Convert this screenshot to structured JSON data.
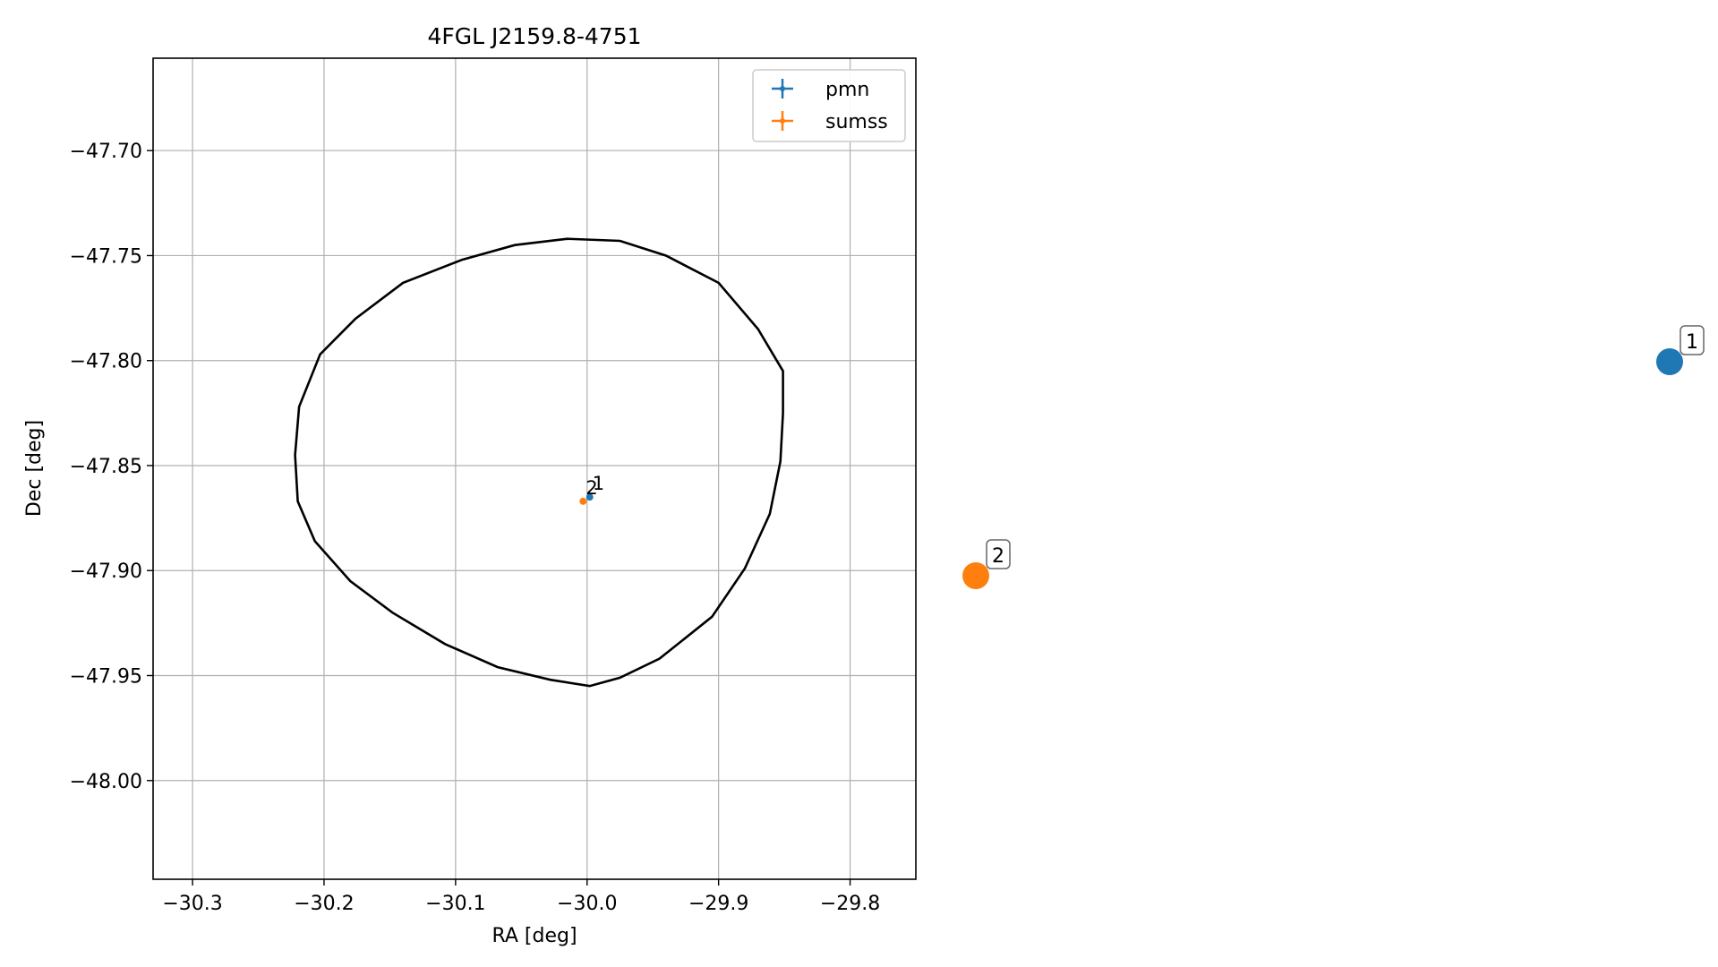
{
  "chart_data": {
    "type": "scatter",
    "title": "4FGL J2159.8-4751",
    "xlabel": "RA [deg]",
    "ylabel": "Dec [deg]",
    "xlim": [
      -30.33,
      -29.75
    ],
    "ylim": [
      -48.047,
      -47.656
    ],
    "x_ticks": [
      -30.3,
      -30.2,
      -30.1,
      -30.0,
      -29.9,
      -29.8
    ],
    "x_tick_labels": [
      "−30.3",
      "−30.2",
      "−30.1",
      "−30.0",
      "−29.9",
      "−29.8"
    ],
    "y_ticks": [
      -47.7,
      -47.75,
      -47.8,
      -47.85,
      -47.9,
      -47.95,
      -48.0
    ],
    "y_tick_labels": [
      "−47.70",
      "−47.75",
      "−47.80",
      "−47.85",
      "−47.90",
      "−47.95",
      "−48.00"
    ],
    "grid": true,
    "legend_position": "top-right",
    "series": [
      {
        "name": "pmn",
        "color": "#1f77b4",
        "points": [
          {
            "x": -29.998,
            "y": -47.865,
            "label": "1"
          }
        ]
      },
      {
        "name": "sumss",
        "color": "#ff7f0e",
        "points": [
          {
            "x": -30.003,
            "y": -47.867,
            "label": "2"
          }
        ]
      }
    ],
    "ellipse": {
      "color": "#000000",
      "points": [
        [
          -29.851,
          -47.825
        ],
        [
          -29.853,
          -47.848
        ],
        [
          -29.861,
          -47.873
        ],
        [
          -29.88,
          -47.899
        ],
        [
          -29.905,
          -47.922
        ],
        [
          -29.945,
          -47.942
        ],
        [
          -29.975,
          -47.951
        ],
        [
          -29.998,
          -47.955
        ],
        [
          -30.028,
          -47.952
        ],
        [
          -30.068,
          -47.946
        ],
        [
          -30.108,
          -47.935
        ],
        [
          -30.148,
          -47.92
        ],
        [
          -30.18,
          -47.905
        ],
        [
          -30.207,
          -47.886
        ],
        [
          -30.22,
          -47.867
        ],
        [
          -30.222,
          -47.845
        ],
        [
          -30.219,
          -47.822
        ],
        [
          -30.203,
          -47.797
        ],
        [
          -30.176,
          -47.78
        ],
        [
          -30.14,
          -47.763
        ],
        [
          -30.095,
          -47.752
        ],
        [
          -30.055,
          -47.745
        ],
        [
          -30.015,
          -47.742
        ],
        [
          -29.975,
          -47.743
        ],
        [
          -29.94,
          -47.75
        ],
        [
          -29.9,
          -47.763
        ],
        [
          -29.87,
          -47.785
        ],
        [
          -29.851,
          -47.805
        ]
      ]
    },
    "side_markers": [
      {
        "label": "1",
        "color": "#1f77b4"
      },
      {
        "label": "2",
        "color": "#ff7f0e"
      }
    ]
  }
}
